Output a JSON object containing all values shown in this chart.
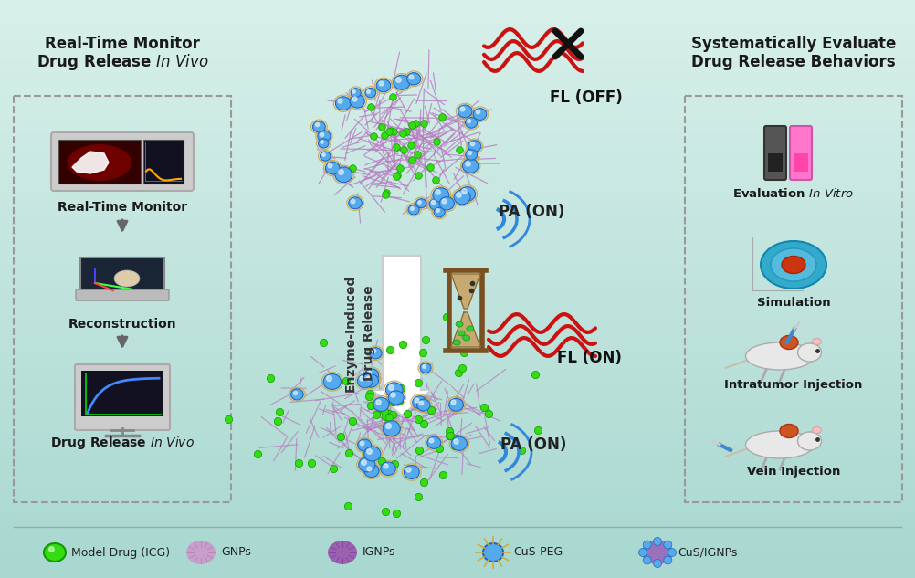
{
  "background_color": "#c5e8e0",
  "bg_gradient_top": "#d8f0ea",
  "bg_gradient_bottom": "#a8d8d0",
  "left_title1": "Real-Time Monitor",
  "left_title2": "Drug Release  In Vivo",
  "right_title1": "Systematically Evaluate",
  "right_title2": "Drug Release Behaviors",
  "label_fl_off": "FL (OFF)",
  "label_fl_on": "FL (ON)",
  "label_pa_on": "PA (ON)",
  "label_arrow": "Enzyme-Induced\nDrug Release",
  "label_rtm": "Real-Time Monitor",
  "label_recon": "Reconstruction",
  "label_drug": "Drug Release  In Vivo",
  "label_eval": "Evaluation  In Vitro",
  "label_sim": "Simulation",
  "label_intra": "Intratumor Injection",
  "label_vein": "Vein Injection",
  "legend_labels": [
    "Model Drug (ICG)",
    "GNPs",
    "IGNPs",
    "CuS-PEG",
    "CuS/IGNPs"
  ],
  "fiber_color": "#c090c8",
  "blue_ball_color": "#55aaee",
  "green_dot_color": "#44cc22",
  "fl_color": "#cc1111",
  "pa_color": "#3377cc",
  "arrow_white": "#ffffff",
  "text_dark": "#1a1a1a",
  "text_gray": "#555555",
  "box_dash_color": "#aaaaaa"
}
